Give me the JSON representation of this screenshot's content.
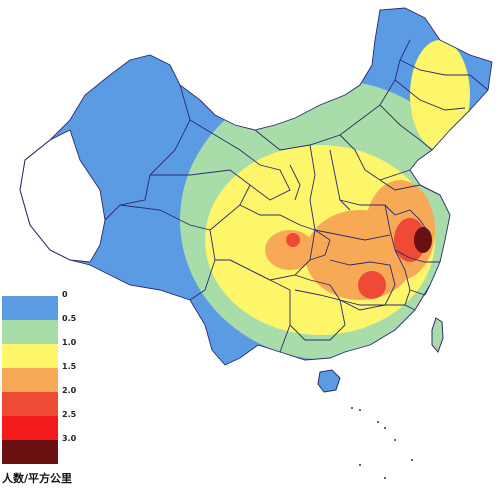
{
  "legend": {
    "unit": "人数/平方公里",
    "classes": [
      {
        "label": "0",
        "color": "#5b9be3"
      },
      {
        "label": "0.5",
        "color": "#a8dca8"
      },
      {
        "label": "1.0",
        "color": "#fdf56a"
      },
      {
        "label": "1.5",
        "color": "#f7a955"
      },
      {
        "label": "2.0",
        "color": "#ef4a35"
      },
      {
        "label": "2.5",
        "color": "#f21a1a"
      },
      {
        "label": "3.0",
        "color": "#6a1010"
      }
    ]
  },
  "colors": {
    "no_data": "#ffffff",
    "boundary": "#2a2a70",
    "sea": "#ffffff"
  }
}
